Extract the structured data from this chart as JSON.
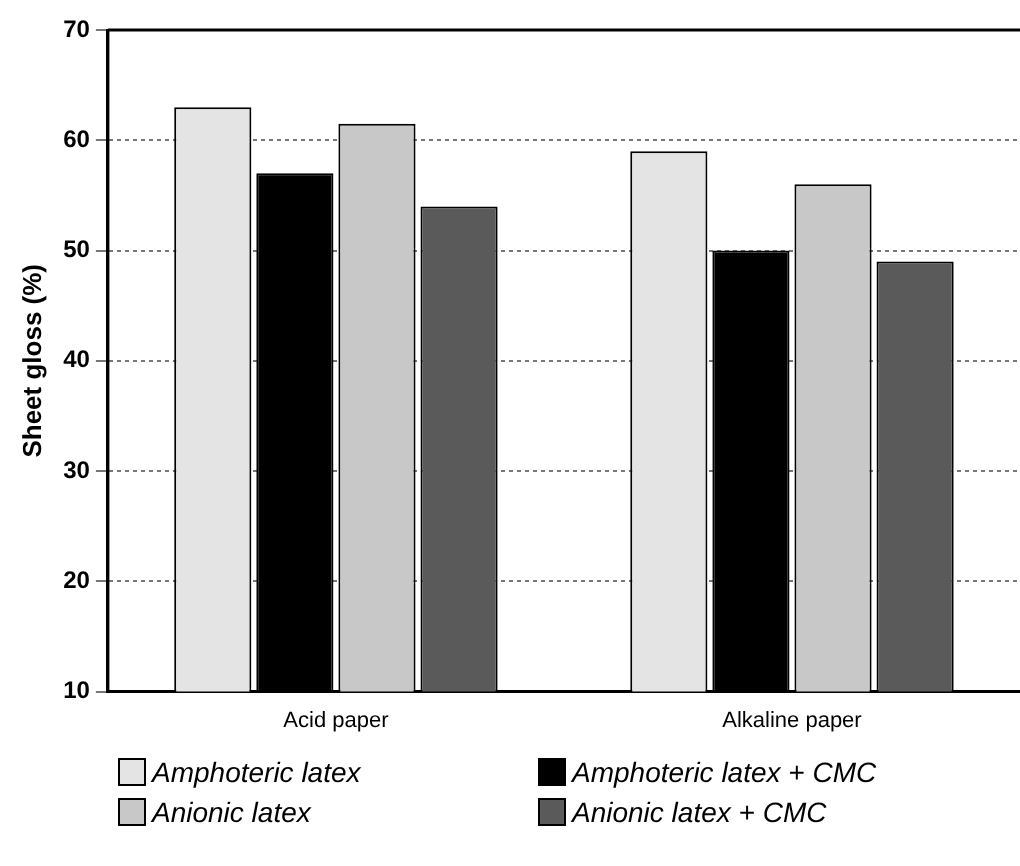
{
  "chart_data": {
    "type": "bar",
    "ylabel": "Sheet gloss (%)",
    "categories": [
      "Acid paper",
      "Alkaline paper"
    ],
    "series": [
      {
        "name": "Amphoteric latex",
        "color": "#e4e4e4",
        "values": [
          63,
          59
        ]
      },
      {
        "name": "Amphoteric latex + CMC",
        "color": "#000000",
        "values": [
          57,
          50
        ]
      },
      {
        "name": "Anionic latex",
        "color": "#c8c8c8",
        "values": [
          61.5,
          56
        ]
      },
      {
        "name": "Anionic latex + CMC",
        "color": "#5a5a5a",
        "values": [
          54,
          49
        ]
      }
    ],
    "ylim": [
      10,
      70
    ],
    "yticks": [
      10,
      20,
      30,
      40,
      50,
      60,
      70
    ],
    "grid": "y",
    "legend": "bottom"
  }
}
